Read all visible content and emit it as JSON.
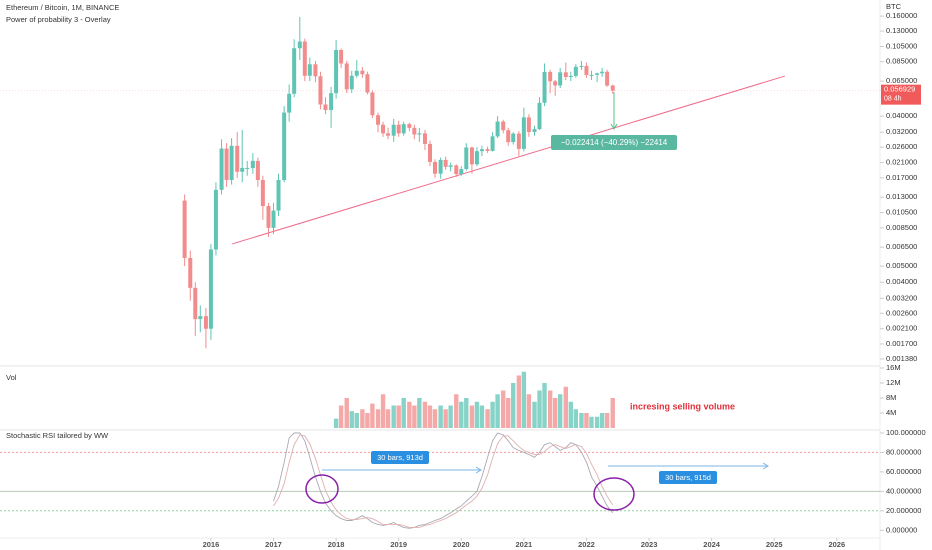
{
  "chart_data": [
    {
      "type": "candlestick",
      "title": "Ethereum / Bitcoin, 1M, BINANCE",
      "subtitle": "Power of probability 3 - Overlay",
      "y_label": "BTC",
      "log_scale": true,
      "ylim": [
        0.00127,
        0.2
      ],
      "xlim": [
        2012.63,
        2026.69
      ],
      "yticks": [
        {
          "value": 0.16,
          "label": "0.160000"
        },
        {
          "value": 0.13,
          "label": "0.130000"
        },
        {
          "value": 0.105,
          "label": "0.105000"
        },
        {
          "value": 0.085,
          "label": "0.085000"
        },
        {
          "value": 0.065,
          "label": "0.065000"
        },
        {
          "value": 0.04,
          "label": "0.040000"
        },
        {
          "value": 0.032,
          "label": "0.032000"
        },
        {
          "value": 0.026,
          "label": "0.026000"
        },
        {
          "value": 0.021,
          "label": "0.021000"
        },
        {
          "value": 0.017,
          "label": "0.017000"
        },
        {
          "value": 0.013,
          "label": "0.013000"
        },
        {
          "value": 0.0105,
          "label": "0.010500"
        },
        {
          "value": 0.0085,
          "label": "0.008500"
        },
        {
          "value": 0.0065,
          "label": "0.006500"
        },
        {
          "value": 0.005,
          "label": "0.005000"
        },
        {
          "value": 0.004,
          "label": "0.004000"
        },
        {
          "value": 0.0032,
          "label": "0.003200"
        },
        {
          "value": 0.0026,
          "label": "0.002600"
        },
        {
          "value": 0.0021,
          "label": "0.002100"
        },
        {
          "value": 0.0017,
          "label": "0.001700"
        },
        {
          "value": 0.00138,
          "label": "0.001380"
        }
      ],
      "up_color": "#5fc4b4",
      "down_color": "#f28b8b",
      "x": [
        2015.58,
        2015.67,
        2015.75,
        2015.83,
        2015.92,
        2016.0,
        2016.08,
        2016.17,
        2016.25,
        2016.33,
        2016.42,
        2016.5,
        2016.58,
        2016.67,
        2016.75,
        2016.83,
        2016.92,
        2017.0,
        2017.08,
        2017.17,
        2017.25,
        2017.33,
        2017.42,
        2017.5,
        2017.58,
        2017.67,
        2017.75,
        2017.83,
        2017.92,
        2018.0,
        2018.08,
        2018.17,
        2018.25,
        2018.33,
        2018.42,
        2018.5,
        2018.58,
        2018.67,
        2018.75,
        2018.83,
        2018.92,
        2019.0,
        2019.08,
        2019.17,
        2019.25,
        2019.33,
        2019.42,
        2019.5,
        2019.58,
        2019.67,
        2019.75,
        2019.83,
        2019.92,
        2020.0,
        2020.08,
        2020.17,
        2020.25,
        2020.33,
        2020.42,
        2020.5,
        2020.58,
        2020.67,
        2020.75,
        2020.83,
        2020.92,
        2021.0,
        2021.08,
        2021.17,
        2021.25,
        2021.33,
        2021.42,
        2021.5,
        2021.58,
        2021.67,
        2021.75,
        2021.83,
        2021.92,
        2022.0,
        2022.08,
        2022.17,
        2022.25,
        2022.33,
        2022.42
      ],
      "open": [
        0.0124,
        0.0056,
        0.0037,
        0.0024,
        0.0025,
        0.0021,
        0.0063,
        0.0144,
        0.0255,
        0.0165,
        0.0265,
        0.0185,
        0.0195,
        0.0195,
        0.0215,
        0.0165,
        0.0115,
        0.0085,
        0.0108,
        0.0165,
        0.042,
        0.0545,
        0.1025,
        0.1125,
        0.07,
        0.082,
        0.0695,
        0.047,
        0.0435,
        0.055,
        0.1,
        0.083,
        0.058,
        0.07,
        0.075,
        0.0715,
        0.0555,
        0.0405,
        0.0355,
        0.0315,
        0.0305,
        0.0355,
        0.0315,
        0.0358,
        0.034,
        0.031,
        0.0315,
        0.0272,
        0.0212,
        0.018,
        0.0218,
        0.0198,
        0.0202,
        0.0179,
        0.0192,
        0.0259,
        0.0205,
        0.0246,
        0.0253,
        0.0247,
        0.0302,
        0.0371,
        0.0329,
        0.0279,
        0.0314,
        0.0254,
        0.0393,
        0.0321,
        0.0334,
        0.0481,
        0.0738,
        0.0648,
        0.0612,
        0.0734,
        0.0688,
        0.0698,
        0.0792,
        0.0802,
        0.0707,
        0.0709,
        0.0724,
        0.074,
        0.0611
      ],
      "high": [
        0.0135,
        0.0062,
        0.004,
        0.0029,
        0.0028,
        0.0068,
        0.016,
        0.029,
        0.0275,
        0.0295,
        0.032,
        0.033,
        0.0215,
        0.024,
        0.0225,
        0.0175,
        0.012,
        0.012,
        0.018,
        0.046,
        0.062,
        0.116,
        0.158,
        0.117,
        0.09,
        0.086,
        0.074,
        0.052,
        0.06,
        0.115,
        0.102,
        0.086,
        0.075,
        0.087,
        0.079,
        0.074,
        0.057,
        0.042,
        0.037,
        0.034,
        0.0385,
        0.0375,
        0.037,
        0.0365,
        0.0355,
        0.034,
        0.033,
        0.0285,
        0.022,
        0.0225,
        0.0228,
        0.021,
        0.0205,
        0.02,
        0.0275,
        0.0262,
        0.026,
        0.0265,
        0.0262,
        0.032,
        0.04,
        0.038,
        0.034,
        0.032,
        0.0325,
        0.045,
        0.041,
        0.035,
        0.052,
        0.083,
        0.076,
        0.066,
        0.078,
        0.084,
        0.074,
        0.082,
        0.086,
        0.084,
        0.075,
        0.073,
        0.078,
        0.076,
        0.062
      ],
      "low": [
        0.005,
        0.0031,
        0.0019,
        0.002,
        0.0016,
        0.0018,
        0.0058,
        0.0135,
        0.015,
        0.0155,
        0.017,
        0.016,
        0.0175,
        0.018,
        0.015,
        0.0095,
        0.0075,
        0.0078,
        0.01,
        0.016,
        0.037,
        0.052,
        0.087,
        0.065,
        0.065,
        0.064,
        0.044,
        0.041,
        0.034,
        0.051,
        0.078,
        0.055,
        0.055,
        0.068,
        0.068,
        0.054,
        0.039,
        0.032,
        0.03,
        0.029,
        0.028,
        0.03,
        0.0305,
        0.0325,
        0.029,
        0.028,
        0.025,
        0.02,
        0.017,
        0.0168,
        0.019,
        0.0186,
        0.0172,
        0.0175,
        0.0188,
        0.018,
        0.02,
        0.023,
        0.024,
        0.0245,
        0.0295,
        0.0315,
        0.0265,
        0.027,
        0.023,
        0.0245,
        0.03,
        0.0305,
        0.033,
        0.046,
        0.055,
        0.053,
        0.059,
        0.066,
        0.065,
        0.068,
        0.076,
        0.068,
        0.066,
        0.064,
        0.069,
        0.06,
        0.0545
      ],
      "close": [
        0.0056,
        0.0037,
        0.0024,
        0.0025,
        0.0021,
        0.0063,
        0.0144,
        0.0255,
        0.0165,
        0.0265,
        0.0185,
        0.0195,
        0.0195,
        0.0215,
        0.0165,
        0.0115,
        0.0085,
        0.0108,
        0.0165,
        0.042,
        0.0545,
        0.1025,
        0.1125,
        0.07,
        0.082,
        0.0695,
        0.047,
        0.0435,
        0.055,
        0.1,
        0.083,
        0.058,
        0.07,
        0.075,
        0.0715,
        0.0555,
        0.0405,
        0.0355,
        0.0315,
        0.0305,
        0.0355,
        0.0315,
        0.0358,
        0.034,
        0.031,
        0.0315,
        0.0272,
        0.0212,
        0.018,
        0.0218,
        0.0198,
        0.0202,
        0.0179,
        0.0192,
        0.0259,
        0.0205,
        0.0246,
        0.0253,
        0.0247,
        0.0302,
        0.0371,
        0.0329,
        0.0279,
        0.0314,
        0.0254,
        0.0393,
        0.0321,
        0.0334,
        0.0481,
        0.0738,
        0.0648,
        0.0612,
        0.0734,
        0.0688,
        0.0698,
        0.0792,
        0.0802,
        0.0707,
        0.0709,
        0.0724,
        0.074,
        0.0611,
        0.056929
      ],
      "last_price_countdown": "08 4h",
      "trendline": {
        "x": [
          2016.34,
          2025.17
        ],
        "y": [
          0.0068,
          0.0697
        ],
        "color": "#f06a8a"
      },
      "measure_label": "−0.022414 (−40.29%) −22414",
      "volume_title": "Vol",
      "volume_ylim": [
        0,
        16000000
      ],
      "volume_yticks": [
        {
          "value": 4000000,
          "label": "4M"
        },
        {
          "value": 8000000,
          "label": "8M"
        },
        {
          "value": 12000000,
          "label": "12M"
        },
        {
          "value": 16000000,
          "label": "16M"
        }
      ],
      "volume": [
        null,
        null,
        null,
        null,
        null,
        null,
        null,
        null,
        null,
        null,
        null,
        null,
        null,
        null,
        null,
        null,
        null,
        null,
        null,
        null,
        null,
        null,
        null,
        null,
        null,
        null,
        null,
        null,
        null,
        2500000,
        6000000,
        8000000,
        4500000,
        4000000,
        5000000,
        4000000,
        6500000,
        5000000,
        9000000,
        5000000,
        6000000,
        6000000,
        8000000,
        7000000,
        6000000,
        8000000,
        7000000,
        6000000,
        5000000,
        6000000,
        5000000,
        6000000,
        9000000,
        7000000,
        8000000,
        6000000,
        7000000,
        6000000,
        5000000,
        7000000,
        9000000,
        10000000,
        8000000,
        12000000,
        14000000,
        15000000,
        9000000,
        7000000,
        10000000,
        12000000,
        10000000,
        8000000,
        9000000,
        11000000,
        7000000,
        5000000,
        4000000,
        4000000,
        3000000,
        3000000,
        4000000,
        4000000,
        8000000
      ],
      "volume_annotation": "incresing selling volume"
    },
    {
      "type": "line",
      "title": "Stochastic RSI tailored by WW",
      "xlim": [
        2012.63,
        2026.69
      ],
      "ylim": [
        -10,
        101
      ],
      "yticks": [
        {
          "value": 0,
          "label": "0.000000"
        },
        {
          "value": 20,
          "label": "20.000000"
        },
        {
          "value": 40,
          "label": "40.000000"
        },
        {
          "value": 60,
          "label": "60.000000"
        },
        {
          "value": 80,
          "label": "80.000000"
        },
        {
          "value": 100,
          "label": "100.000000"
        }
      ],
      "xticks": [
        2016,
        2017,
        2018,
        2019,
        2020,
        2021,
        2022,
        2023,
        2024,
        2025,
        2026
      ],
      "levels": [
        {
          "value": 80,
          "color": "#f19a9a"
        },
        {
          "value": 40,
          "color": "#b9c9b9"
        },
        {
          "value": 20,
          "color": "#8fd0a0"
        }
      ],
      "x": [
        2017.0,
        2017.08,
        2017.17,
        2017.25,
        2017.33,
        2017.42,
        2017.5,
        2017.58,
        2017.67,
        2017.75,
        2017.83,
        2017.92,
        2018.0,
        2018.08,
        2018.17,
        2018.25,
        2018.33,
        2018.42,
        2018.5,
        2018.58,
        2018.67,
        2018.75,
        2018.83,
        2018.92,
        2019.0,
        2019.08,
        2019.17,
        2019.25,
        2019.33,
        2019.42,
        2019.5,
        2019.58,
        2019.67,
        2019.75,
        2019.83,
        2019.92,
        2020.0,
        2020.08,
        2020.17,
        2020.25,
        2020.33,
        2020.42,
        2020.5,
        2020.58,
        2020.67,
        2020.75,
        2020.83,
        2020.92,
        2021.0,
        2021.08,
        2021.17,
        2021.25,
        2021.33,
        2021.42,
        2021.5,
        2021.58,
        2021.67,
        2021.75,
        2021.83,
        2021.92,
        2022.0,
        2022.08,
        2022.17,
        2022.25,
        2022.33,
        2022.42
      ],
      "series": [
        {
          "color": "#a9a9b4",
          "values": [
            30,
            45,
            70,
            95,
            100,
            100,
            92,
            75,
            55,
            40,
            28,
            20,
            15,
            12,
            10,
            10,
            12,
            15,
            12,
            8,
            6,
            5,
            6,
            8,
            5,
            3,
            2,
            3,
            5,
            6,
            8,
            10,
            12,
            15,
            18,
            22,
            25,
            30,
            35,
            40,
            55,
            75,
            92,
            100,
            98,
            92,
            85,
            82,
            80,
            78,
            75,
            80,
            88,
            90,
            86,
            82,
            85,
            90,
            88,
            80,
            70,
            55,
            45,
            35,
            25,
            18
          ]
        },
        {
          "color": "#e0b0b0",
          "values": [
            25,
            33,
            48,
            70,
            88,
            98,
            97,
            89,
            74,
            57,
            41,
            29,
            21,
            16,
            12,
            11,
            11,
            12,
            13,
            12,
            9,
            6,
            6,
            6,
            6,
            5,
            3,
            3,
            3,
            5,
            6,
            8,
            10,
            12,
            15,
            18,
            22,
            26,
            30,
            35,
            43,
            57,
            74,
            89,
            97,
            97,
            92,
            86,
            82,
            80,
            78,
            78,
            81,
            86,
            88,
            86,
            84,
            86,
            88,
            86,
            79,
            68,
            57,
            45,
            35,
            26
          ]
        }
      ],
      "annotations": [
        "30 bars, 913d",
        "30 bars, 915d"
      ]
    }
  ]
}
